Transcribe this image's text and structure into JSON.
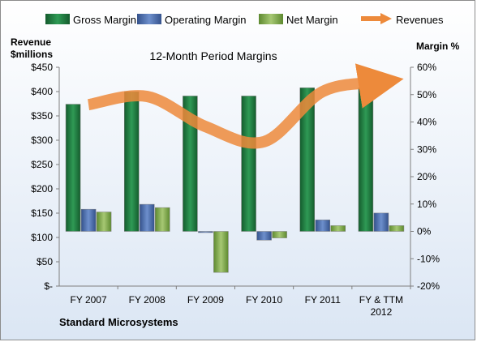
{
  "chart_data": {
    "type": "bar",
    "title": "12-Month Period Margins",
    "left_axis_label_line1": "Revenue",
    "left_axis_label_line2": "$millions",
    "right_axis_label": "Margin %",
    "footer": "Standard Microsystems",
    "categories": [
      "FY 2007",
      "FY 2008",
      "FY 2009",
      "FY 2010",
      "FY 2011",
      "FY & TTM 2012"
    ],
    "left_axis": {
      "ylim": [
        0,
        450
      ],
      "ticks": [
        0,
        50,
        100,
        150,
        200,
        250,
        300,
        350,
        400,
        450
      ],
      "tick_labels": [
        "$-",
        "$50",
        "$100",
        "$150",
        "$200",
        "$250",
        "$300",
        "$350",
        "$400",
        "$450"
      ]
    },
    "right_axis": {
      "ylim": [
        -20,
        60
      ],
      "ticks": [
        -20,
        -10,
        0,
        10,
        20,
        30,
        40,
        50,
        60
      ],
      "tick_labels": [
        "-20%",
        "-10%",
        "0%",
        "10%",
        "20%",
        "30%",
        "40%",
        "50%",
        "60%"
      ]
    },
    "bar_series": [
      {
        "name": "Gross Margin",
        "axis": "right",
        "color": "#1f7a3f",
        "values": [
          46.5,
          51.1,
          49.5,
          49.5,
          52.5,
          52.5
        ]
      },
      {
        "name": "Operating Margin",
        "axis": "right",
        "color": "#4a6fb0",
        "values": [
          8.1,
          9.9,
          -0.3,
          -3.2,
          4.2,
          6.7
        ]
      },
      {
        "name": "Net Margin",
        "axis": "right",
        "color": "#7fa84a",
        "values": [
          7.1,
          8.7,
          -15.0,
          -2.4,
          2.1,
          2.1
        ]
      }
    ],
    "line_series": [
      {
        "name": "Revenues",
        "axis": "left",
        "color": "#ed8a3b",
        "values": [
          373,
          390,
          328,
          297,
          400,
          419
        ]
      }
    ],
    "legend_placement": "top",
    "grid": false
  }
}
